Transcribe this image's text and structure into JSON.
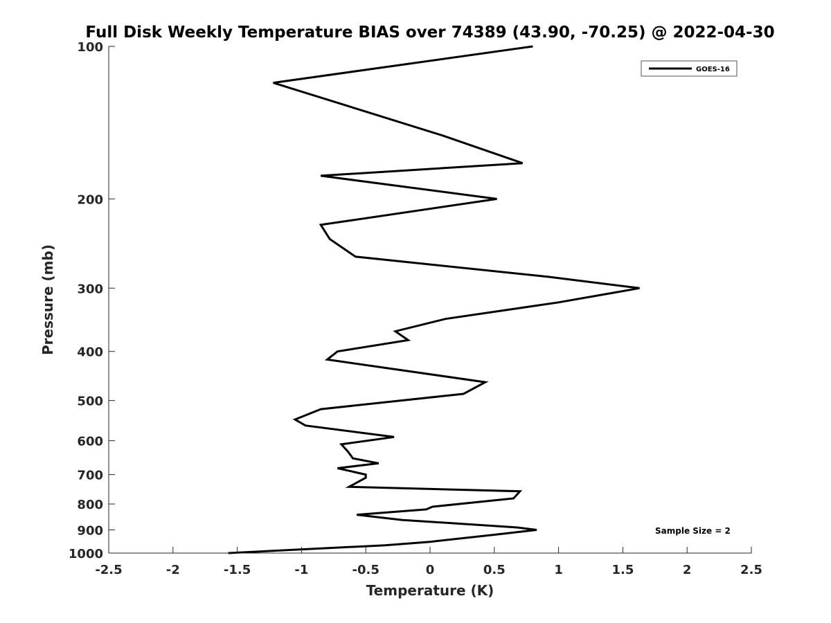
{
  "chart_data": {
    "type": "line",
    "title": "Full Disk Weekly Temperature BIAS over 74389 (43.90, -70.25) @ 2022-04-30",
    "xlabel": "Temperature (K)",
    "ylabel": "Pressure (mb)",
    "xlim": [
      -2.5,
      2.5
    ],
    "ylim": [
      100,
      1000
    ],
    "y_scale": "log",
    "y_reversed": true,
    "x_ticks": [
      -2.5,
      -2,
      -1.5,
      -1,
      -0.5,
      0,
      0.5,
      1,
      1.5,
      2,
      2.5
    ],
    "x_tick_labels": [
      "-2.5",
      "-2",
      "-1.5",
      "-1",
      "-0.5",
      "0",
      "0.5",
      "1",
      "1.5",
      "2",
      "2.5"
    ],
    "y_ticks": [
      100,
      200,
      300,
      400,
      500,
      600,
      700,
      800,
      900,
      1000
    ],
    "y_tick_labels": [
      "100",
      "200",
      "300",
      "400",
      "500",
      "600",
      "700",
      "800",
      "900",
      "1000"
    ],
    "grid": false,
    "legend_position": "top-right",
    "series": [
      {
        "name": "GOES-16",
        "color": "#000000",
        "points": [
          [
            0.8,
            100
          ],
          [
            -1.22,
            118
          ],
          [
            0.1,
            150
          ],
          [
            0.72,
            170
          ],
          [
            -0.85,
            180
          ],
          [
            0.52,
            200
          ],
          [
            -0.85,
            225
          ],
          [
            -0.78,
            240
          ],
          [
            -0.58,
            260
          ],
          [
            0.92,
            285
          ],
          [
            1.63,
            300
          ],
          [
            1.0,
            320
          ],
          [
            0.12,
            345
          ],
          [
            -0.27,
            365
          ],
          [
            -0.17,
            380
          ],
          [
            -0.72,
            400
          ],
          [
            -0.8,
            415
          ],
          [
            0.43,
            460
          ],
          [
            0.26,
            485
          ],
          [
            -0.85,
            520
          ],
          [
            -1.05,
            545
          ],
          [
            -0.97,
            560
          ],
          [
            -0.28,
            590
          ],
          [
            -0.69,
            610
          ],
          [
            -0.64,
            630
          ],
          [
            -0.6,
            650
          ],
          [
            -0.4,
            665
          ],
          [
            -0.72,
            680
          ],
          [
            -0.5,
            700
          ],
          [
            -0.5,
            710
          ],
          [
            -0.63,
            740
          ],
          [
            0.7,
            755
          ],
          [
            0.65,
            780
          ],
          [
            0.02,
            810
          ],
          [
            -0.03,
            820
          ],
          [
            -0.57,
            840
          ],
          [
            -0.22,
            860
          ],
          [
            0.68,
            890
          ],
          [
            0.83,
            900
          ],
          [
            0.5,
            920
          ],
          [
            0.0,
            950
          ],
          [
            -0.35,
            965
          ],
          [
            -1.57,
            1000
          ]
        ]
      }
    ],
    "annotations": [
      "Sample Size = 2"
    ]
  }
}
